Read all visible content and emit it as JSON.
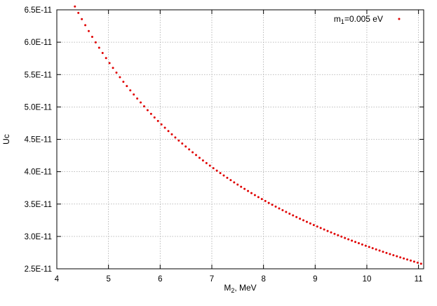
{
  "chart_data": {
    "type": "scatter",
    "title": "",
    "xlabel_main": "M",
    "xlabel_sub": "2",
    "xlabel_rest": ", MeV",
    "ylabel": "Uc",
    "xlim": [
      4,
      11.1
    ],
    "ylim": [
      2.5e-11,
      6.5e-11
    ],
    "x_ticks": [
      4,
      5,
      6,
      7,
      8,
      9,
      10,
      11
    ],
    "x_tick_labels": [
      "4",
      "5",
      "6",
      "7",
      "8",
      "9",
      "10",
      "11"
    ],
    "y_ticks": [
      2.5e-11,
      3e-11,
      3.5e-11,
      4e-11,
      4.5e-11,
      5e-11,
      5.5e-11,
      6e-11,
      6.5e-11
    ],
    "y_tick_labels": [
      "2.5E-11",
      "3.0E-11",
      "3.5E-11",
      "4.0E-11",
      "4.5E-11",
      "5.0E-11",
      "5.5E-11",
      "6.0E-11",
      "6.5E-11"
    ],
    "grid": true,
    "legend_position": "top-right",
    "series": [
      {
        "legend_main": "m",
        "legend_sub": "1",
        "legend_rest": "=0.005 eV",
        "color": "#e00000",
        "x_start": 4.35,
        "x_end": 11.05,
        "x_step": 0.067,
        "relation": "y = 2.85e-10 / x",
        "points": [
          [
            4.35,
            6.55e-11
          ],
          [
            5.0,
            5.62e-11
          ],
          [
            6.0,
            4.71e-11
          ],
          [
            7.0,
            4.03e-11
          ],
          [
            8.0,
            3.52e-11
          ],
          [
            9.0,
            3.14e-11
          ],
          [
            10.0,
            2.83e-11
          ],
          [
            11.05,
            2.55e-11
          ]
        ]
      }
    ]
  }
}
